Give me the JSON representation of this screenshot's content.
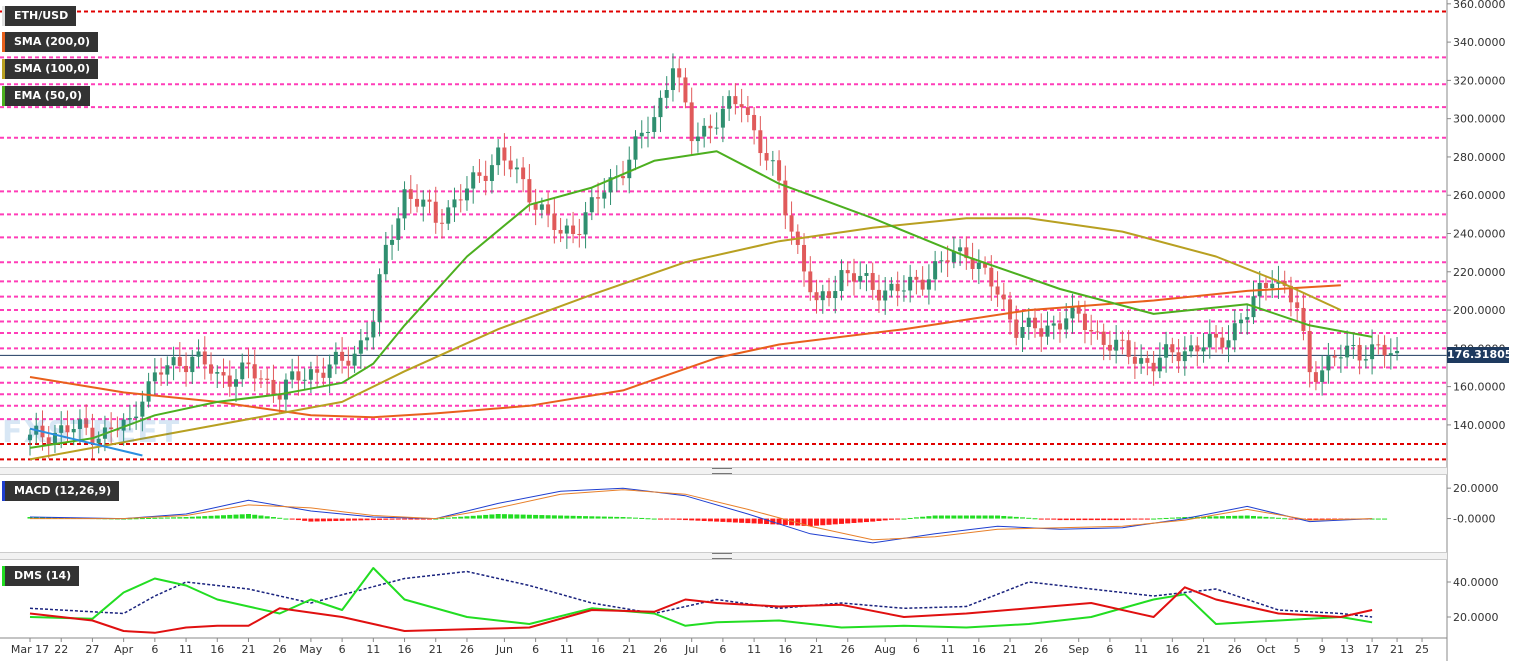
{
  "header": {
    "symbol": "ETH/USD",
    "current_price_label": "176.31805",
    "indicators": [
      {
        "label": "SMA (200,0)",
        "color": "#e8601c"
      },
      {
        "label": "SMA (100,0)",
        "color": "#b8a021"
      },
      {
        "label": "EMA (50,0)",
        "color": "#4caf1f"
      }
    ],
    "macd_label": "MACD (12,26,9)",
    "dms_label": "DMS (14)",
    "watermark": "FXSTREET"
  },
  "colors": {
    "bull": "#2f8f6f",
    "bear": "#e05a5a",
    "sma200": "#e8601c",
    "sma100": "#b8a021",
    "ema50": "#4caf1f",
    "level_pink": "#ff3db8",
    "level_red": "#e00000",
    "macd_line": "#1f3fd0",
    "signal_line": "#e8802a",
    "hist_pos": "#22dd22",
    "hist_neg": "#ff1a1a",
    "dms_plus": "#22dd22",
    "dms_minus": "#e01010",
    "adx": "#1a237e",
    "trend_blue": "#2b8fe0"
  },
  "chart_data": [
    {
      "type": "candlestick",
      "title": "ETH/USD",
      "ylim": [
        118,
        362
      ],
      "yticks": [
        "140.0000",
        "160.0000",
        "180.0000",
        "200.0000",
        "220.0000",
        "240.0000",
        "260.0000",
        "280.0000",
        "300.0000",
        "320.0000",
        "340.0000",
        "360.0000"
      ],
      "ytick_values": [
        140,
        160,
        180,
        200,
        220,
        240,
        260,
        280,
        300,
        320,
        340,
        360
      ],
      "xticks": [
        "Mar 17",
        "22",
        "27",
        "Apr",
        "6",
        "11",
        "16",
        "21",
        "26",
        "May",
        "6",
        "11",
        "16",
        "21",
        "26",
        "Jun",
        "6",
        "11",
        "16",
        "21",
        "26",
        "Jul",
        "6",
        "11",
        "16",
        "21",
        "26",
        "Aug",
        "6",
        "11",
        "16",
        "21",
        "26",
        "Sep",
        "6",
        "11",
        "16",
        "21",
        "26",
        "Oct",
        "5",
        "9",
        "13",
        "17",
        "21",
        "25"
      ],
      "xtick_days": [
        0,
        5,
        10,
        15,
        20,
        25,
        30,
        35,
        40,
        45,
        50,
        55,
        60,
        65,
        70,
        76,
        81,
        86,
        91,
        96,
        101,
        106,
        111,
        116,
        121,
        126,
        131,
        137,
        142,
        147,
        152,
        157,
        162,
        168,
        173,
        178,
        183,
        188,
        193,
        198,
        203,
        207,
        211,
        215,
        219,
        223
      ],
      "current_price": 176.31805,
      "horizontal_levels": [
        {
          "value": 356,
          "style": "red"
        },
        {
          "value": 332,
          "style": "pink"
        },
        {
          "value": 318,
          "style": "pink"
        },
        {
          "value": 306,
          "style": "pink"
        },
        {
          "value": 290,
          "style": "pink"
        },
        {
          "value": 262,
          "style": "pink"
        },
        {
          "value": 250,
          "style": "pink"
        },
        {
          "value": 238,
          "style": "pink"
        },
        {
          "value": 225,
          "style": "pink"
        },
        {
          "value": 215,
          "style": "pink"
        },
        {
          "value": 207,
          "style": "pink"
        },
        {
          "value": 200,
          "style": "pink"
        },
        {
          "value": 194,
          "style": "pink"
        },
        {
          "value": 188,
          "style": "pink"
        },
        {
          "value": 180,
          "style": "pink"
        },
        {
          "value": 170,
          "style": "pink"
        },
        {
          "value": 162,
          "style": "pink"
        },
        {
          "value": 156,
          "style": "pink"
        },
        {
          "value": 150,
          "style": "pink"
        },
        {
          "value": 143,
          "style": "pink"
        },
        {
          "value": 130,
          "style": "red"
        },
        {
          "value": 122,
          "style": "red"
        }
      ],
      "sma200": [
        [
          0,
          165
        ],
        [
          15,
          157
        ],
        [
          30,
          152
        ],
        [
          45,
          145
        ],
        [
          55,
          144
        ],
        [
          65,
          146
        ],
        [
          80,
          150
        ],
        [
          95,
          158
        ],
        [
          110,
          175
        ],
        [
          120,
          182
        ],
        [
          140,
          190
        ],
        [
          160,
          200
        ],
        [
          180,
          205
        ],
        [
          195,
          210
        ],
        [
          210,
          213
        ]
      ],
      "sma100": [
        [
          0,
          122
        ],
        [
          10,
          128
        ],
        [
          20,
          134
        ],
        [
          30,
          140
        ],
        [
          40,
          146
        ],
        [
          50,
          152
        ],
        [
          60,
          168
        ],
        [
          75,
          190
        ],
        [
          90,
          208
        ],
        [
          105,
          225
        ],
        [
          120,
          236
        ],
        [
          135,
          243
        ],
        [
          150,
          248
        ],
        [
          160,
          248
        ],
        [
          175,
          241
        ],
        [
          190,
          228
        ],
        [
          200,
          215
        ],
        [
          210,
          200
        ]
      ],
      "ema50": [
        [
          0,
          128
        ],
        [
          10,
          133
        ],
        [
          20,
          145
        ],
        [
          30,
          152
        ],
        [
          40,
          156
        ],
        [
          50,
          162
        ],
        [
          55,
          172
        ],
        [
          60,
          192
        ],
        [
          70,
          228
        ],
        [
          80,
          255
        ],
        [
          90,
          264
        ],
        [
          100,
          278
        ],
        [
          110,
          283
        ],
        [
          120,
          266
        ],
        [
          135,
          248
        ],
        [
          150,
          228
        ],
        [
          165,
          211
        ],
        [
          180,
          198
        ],
        [
          195,
          203
        ],
        [
          205,
          192
        ],
        [
          215,
          186
        ]
      ],
      "trendline": [
        [
          0,
          138
        ],
        [
          18,
          124
        ]
      ]
    },
    {
      "type": "bar+line",
      "title": "MACD (12,26,9)",
      "ylim": [
        -22,
        28
      ],
      "yticks": [
        "20.0000",
        "-0.0000"
      ],
      "ytick_values": [
        20,
        0
      ],
      "macd": [
        [
          0,
          1
        ],
        [
          15,
          0
        ],
        [
          25,
          3
        ],
        [
          35,
          12
        ],
        [
          45,
          5
        ],
        [
          55,
          1
        ],
        [
          65,
          0
        ],
        [
          75,
          10
        ],
        [
          85,
          18
        ],
        [
          95,
          20
        ],
        [
          105,
          15
        ],
        [
          115,
          3
        ],
        [
          125,
          -10
        ],
        [
          135,
          -16
        ],
        [
          145,
          -10
        ],
        [
          155,
          -5
        ],
        [
          165,
          -7
        ],
        [
          175,
          -6
        ],
        [
          185,
          0
        ],
        [
          195,
          8
        ],
        [
          205,
          -2
        ],
        [
          215,
          0
        ]
      ],
      "signal": [
        [
          0,
          0
        ],
        [
          15,
          0
        ],
        [
          25,
          2
        ],
        [
          35,
          9
        ],
        [
          45,
          7
        ],
        [
          55,
          2
        ],
        [
          65,
          0
        ],
        [
          75,
          7
        ],
        [
          85,
          16
        ],
        [
          95,
          19
        ],
        [
          105,
          16
        ],
        [
          115,
          6
        ],
        [
          125,
          -5
        ],
        [
          135,
          -14
        ],
        [
          145,
          -12
        ],
        [
          155,
          -7
        ],
        [
          165,
          -6
        ],
        [
          175,
          -5
        ],
        [
          185,
          -1
        ],
        [
          195,
          6
        ],
        [
          205,
          -1
        ],
        [
          215,
          0
        ]
      ]
    },
    {
      "type": "line",
      "title": "DMS (14)",
      "ylim": [
        8,
        52
      ],
      "yticks": [
        "40.0000",
        "20.0000"
      ],
      "ytick_values": [
        40,
        20
      ],
      "series": [
        {
          "role": "DI+",
          "values": [
            [
              0,
              20
            ],
            [
              10,
              19
            ],
            [
              15,
              34
            ],
            [
              20,
              42
            ],
            [
              25,
              38
            ],
            [
              30,
              30
            ],
            [
              35,
              26
            ],
            [
              40,
              22
            ],
            [
              45,
              30
            ],
            [
              50,
              24
            ],
            [
              55,
              48
            ],
            [
              60,
              30
            ],
            [
              70,
              20
            ],
            [
              80,
              16
            ],
            [
              90,
              25
            ],
            [
              100,
              22
            ],
            [
              105,
              15
            ],
            [
              110,
              17
            ],
            [
              120,
              18
            ],
            [
              130,
              14
            ],
            [
              140,
              15
            ],
            [
              150,
              14
            ],
            [
              160,
              16
            ],
            [
              170,
              20
            ],
            [
              180,
              30
            ],
            [
              185,
              33
            ],
            [
              190,
              16
            ],
            [
              200,
              18
            ],
            [
              210,
              20
            ],
            [
              215,
              17
            ]
          ]
        },
        {
          "role": "DI-",
          "values": [
            [
              0,
              22
            ],
            [
              10,
              18
            ],
            [
              15,
              12
            ],
            [
              20,
              11
            ],
            [
              25,
              14
            ],
            [
              30,
              15
            ],
            [
              35,
              15
            ],
            [
              40,
              25
            ],
            [
              50,
              20
            ],
            [
              60,
              12
            ],
            [
              70,
              13
            ],
            [
              80,
              14
            ],
            [
              90,
              24
            ],
            [
              100,
              23
            ],
            [
              105,
              30
            ],
            [
              110,
              28
            ],
            [
              120,
              26
            ],
            [
              130,
              27
            ],
            [
              140,
              20
            ],
            [
              150,
              22
            ],
            [
              160,
              25
            ],
            [
              170,
              28
            ],
            [
              180,
              20
            ],
            [
              185,
              37
            ],
            [
              190,
              30
            ],
            [
              200,
              22
            ],
            [
              210,
              20
            ],
            [
              215,
              24
            ]
          ]
        },
        {
          "role": "ADX",
          "values": [
            [
              0,
              25
            ],
            [
              15,
              22
            ],
            [
              20,
              32
            ],
            [
              25,
              40
            ],
            [
              35,
              36
            ],
            [
              45,
              28
            ],
            [
              60,
              42
            ],
            [
              70,
              46
            ],
            [
              80,
              38
            ],
            [
              90,
              28
            ],
            [
              100,
              22
            ],
            [
              110,
              30
            ],
            [
              120,
              25
            ],
            [
              130,
              28
            ],
            [
              140,
              25
            ],
            [
              150,
              26
            ],
            [
              160,
              40
            ],
            [
              170,
              36
            ],
            [
              180,
              32
            ],
            [
              190,
              36
            ],
            [
              200,
              24
            ],
            [
              210,
              22
            ],
            [
              215,
              20
            ]
          ]
        }
      ]
    }
  ]
}
